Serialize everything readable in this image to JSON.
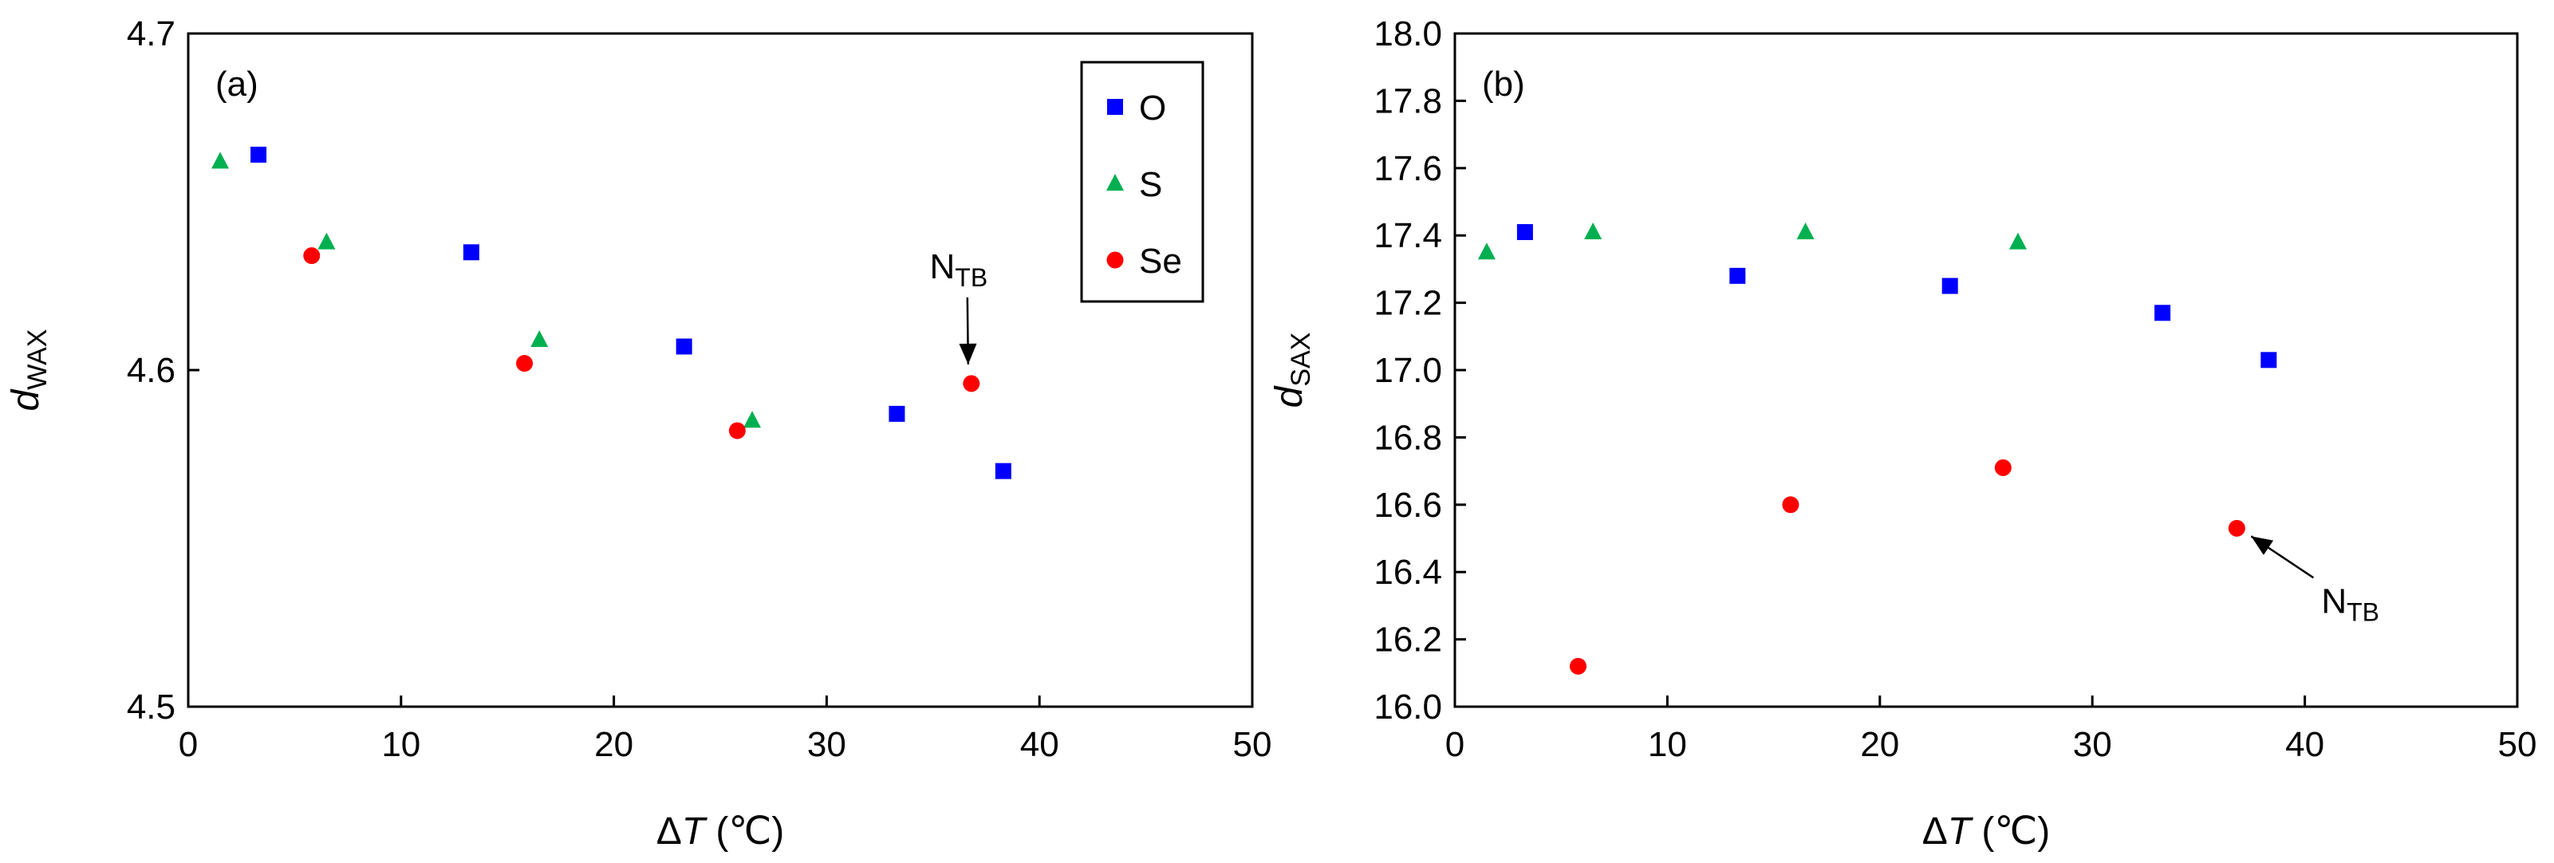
{
  "chart_data": [
    {
      "type": "scatter",
      "panel_label": "(a)",
      "xlabel_symbol": "Δ",
      "xlabel_var": "T",
      "xlabel_unit": " (℃)",
      "ylabel_var": "d",
      "ylabel_sub": "WAX",
      "xlim": [
        0,
        50
      ],
      "ylim": [
        4.5,
        4.7
      ],
      "xticks": [
        "0",
        "10",
        "20",
        "30",
        "40",
        "50"
      ],
      "yticks": [
        "4.5",
        "4.6",
        "4.7"
      ],
      "grid": false,
      "legend_position": "top-right",
      "series": [
        {
          "name": "O",
          "marker": "square",
          "color": "#0000ff",
          "points": [
            [
              3.3,
              4.664
            ],
            [
              13.3,
              4.635
            ],
            [
              23.3,
              4.607
            ],
            [
              33.3,
              4.587
            ],
            [
              38.3,
              4.57
            ]
          ]
        },
        {
          "name": "S",
          "marker": "triangle",
          "color": "#00b050",
          "points": [
            [
              1.5,
              4.662
            ],
            [
              6.5,
              4.638
            ],
            [
              16.5,
              4.609
            ],
            [
              26.5,
              4.585
            ]
          ]
        },
        {
          "name": "Se",
          "marker": "circle",
          "color": "#ff0000",
          "points": [
            [
              5.8,
              4.634
            ],
            [
              15.8,
              4.602
            ],
            [
              25.8,
              4.582
            ],
            [
              36.8,
              4.596
            ]
          ]
        }
      ],
      "annotation": {
        "text_main": "N",
        "text_sub": "TB",
        "target": [
          36.8,
          4.596
        ]
      }
    },
    {
      "type": "scatter",
      "panel_label": "(b)",
      "xlabel_symbol": "Δ",
      "xlabel_var": "T",
      "xlabel_unit": " (℃)",
      "ylabel_var": "d",
      "ylabel_sub": "SAX",
      "xlim": [
        0,
        50
      ],
      "ylim": [
        16.0,
        18.0
      ],
      "xticks": [
        "0",
        "10",
        "20",
        "30",
        "40",
        "50"
      ],
      "yticks": [
        "16.0",
        "16.2",
        "16.4",
        "16.6",
        "16.8",
        "17.0",
        "17.2",
        "17.4",
        "17.6",
        "17.8",
        "18.0"
      ],
      "grid": false,
      "series": [
        {
          "name": "O",
          "marker": "square",
          "color": "#0000ff",
          "points": [
            [
              3.3,
              17.41
            ],
            [
              13.3,
              17.28
            ],
            [
              23.3,
              17.25
            ],
            [
              33.3,
              17.17
            ],
            [
              38.3,
              17.03
            ]
          ]
        },
        {
          "name": "S",
          "marker": "triangle",
          "color": "#00b050",
          "points": [
            [
              1.5,
              17.35
            ],
            [
              6.5,
              17.41
            ],
            [
              16.5,
              17.41
            ],
            [
              26.5,
              17.38
            ]
          ]
        },
        {
          "name": "Se",
          "marker": "circle",
          "color": "#ff0000",
          "points": [
            [
              5.8,
              16.12
            ],
            [
              15.8,
              16.6
            ],
            [
              25.8,
              16.71
            ],
            [
              36.8,
              16.53
            ]
          ]
        }
      ],
      "annotation": {
        "text_main": "N",
        "text_sub": "TB",
        "target": [
          36.8,
          16.53
        ]
      }
    }
  ]
}
